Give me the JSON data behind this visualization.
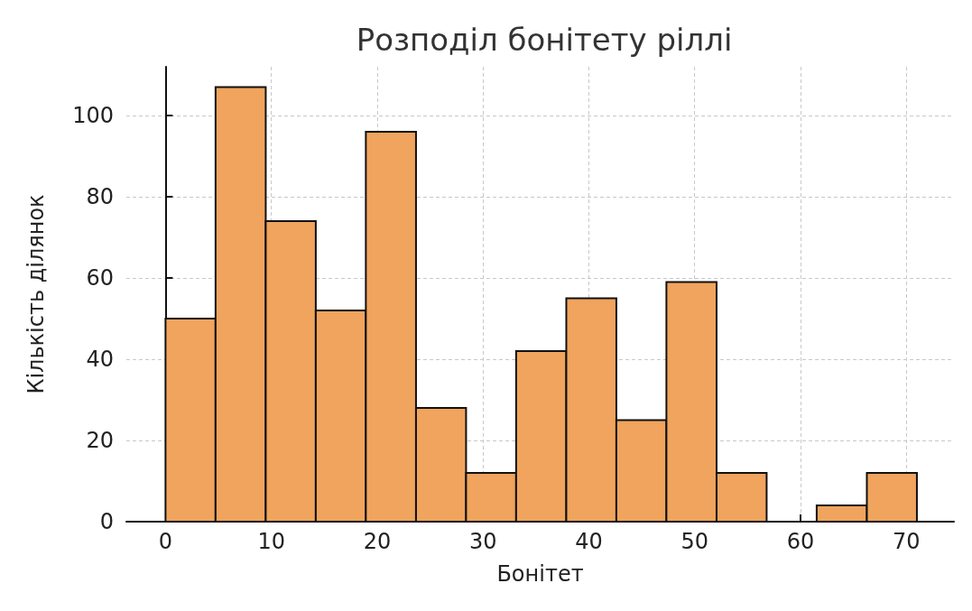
{
  "chart_data": {
    "type": "histogram",
    "title": "Розподіл бонітету ріллі",
    "xlabel": "Бонітет",
    "ylabel": "Кількість ділянок",
    "bins": [
      0,
      4.73,
      9.47,
      14.2,
      18.93,
      23.67,
      28.4,
      33.13,
      37.87,
      42.6,
      47.33,
      52.07,
      56.8,
      61.53,
      66.27,
      71
    ],
    "values": [
      50,
      107,
      74,
      52,
      96,
      28,
      12,
      42,
      55,
      25,
      59,
      12,
      0,
      4,
      12
    ],
    "color": "#f0a45d",
    "xlim": [
      -3.7,
      74.5
    ],
    "xticks": [
      0,
      10,
      20,
      30,
      40,
      50,
      60,
      70
    ],
    "ylim": [
      0,
      112
    ],
    "yticks": [
      0,
      20,
      40,
      60,
      80,
      100
    ],
    "grid": true
  }
}
